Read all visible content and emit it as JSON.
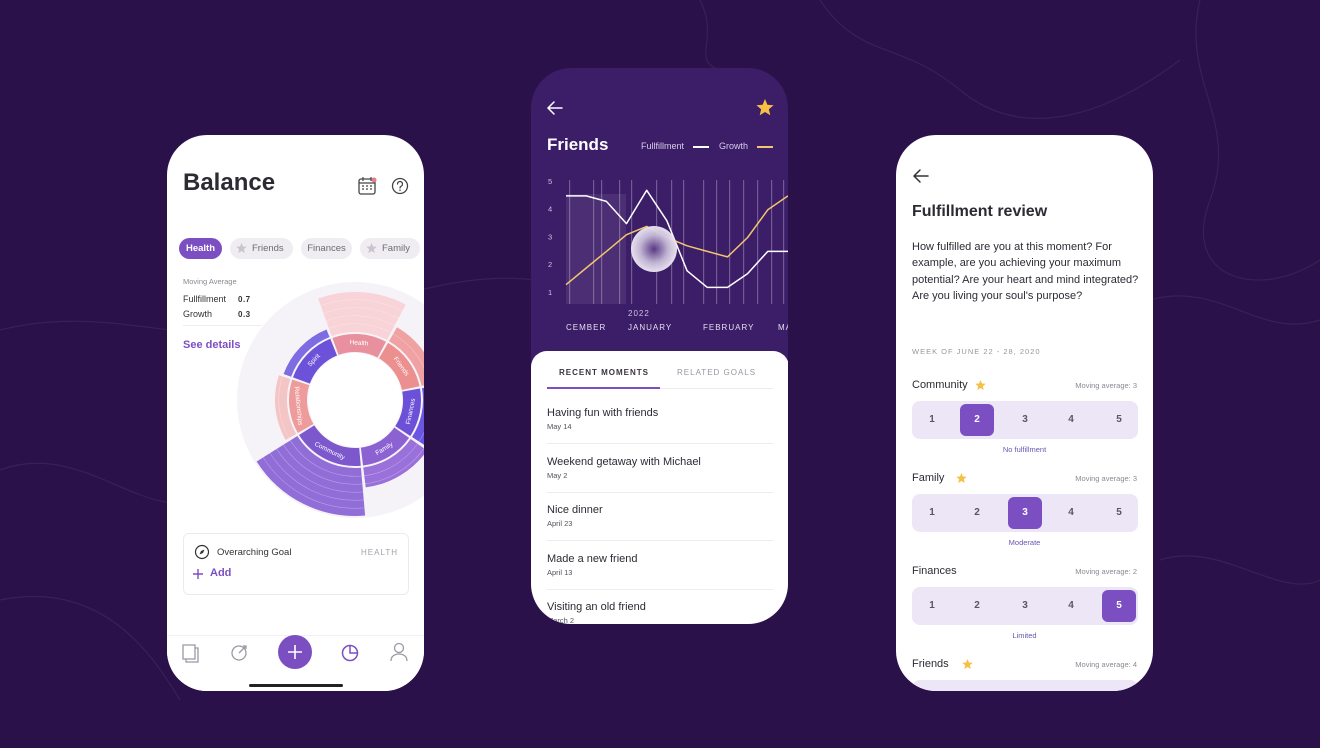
{
  "balance": {
    "title": "Balance",
    "tabs": [
      {
        "label": "Health",
        "active": true,
        "star": false
      },
      {
        "label": "Friends",
        "active": false,
        "star": true
      },
      {
        "label": "Finances",
        "active": false,
        "star": false
      },
      {
        "label": "Family",
        "active": false,
        "star": true
      }
    ],
    "moving_average_label": "Moving Average",
    "metrics": [
      {
        "label": "Fullfillment",
        "value": 0.7
      },
      {
        "label": "Growth",
        "value": 0.3
      }
    ],
    "see_details": "See details",
    "wheel_labels": [
      "Health",
      "Friends",
      "Finances",
      "Family",
      "Community",
      "Relationships",
      "Spirit"
    ],
    "goal": {
      "title": "Overarching Goal",
      "tag": "HEALTH",
      "add": "Add"
    }
  },
  "friends": {
    "title": "Friends",
    "chart": {
      "type": "line",
      "ylim": [
        1,
        5
      ],
      "yticks": [
        1,
        2,
        3,
        4,
        5
      ],
      "series": [
        {
          "name": "Fullfillment",
          "color": "#ffffff",
          "values": [
            4.5,
            4.5,
            4.3,
            3.5,
            4.7,
            3.6,
            1.8,
            1.2,
            1.2,
            1.7,
            2.5,
            2.5
          ]
        },
        {
          "name": "Growth",
          "color": "#f2c66d",
          "values": [
            1.3,
            1.9,
            2.5,
            3.1,
            3.4,
            3.0,
            2.7,
            2.5,
            2.3,
            3.0,
            4.0,
            4.5
          ]
        }
      ],
      "year": "2022",
      "x_labels": [
        "CEMBER",
        "JANUARY",
        "FEBRUARY",
        "MA"
      ]
    },
    "tabs": [
      "RECENT MOMENTS",
      "RELATED GOALS"
    ],
    "moments": [
      {
        "title": "Having fun with friends",
        "date": "May 14"
      },
      {
        "title": "Weekend getaway with Michael",
        "date": "May 2"
      },
      {
        "title": "Nice dinner",
        "date": "April 23"
      },
      {
        "title": "Made a new friend",
        "date": "April 13"
      },
      {
        "title": "Visiting an old friend",
        "date": "March 2"
      }
    ]
  },
  "review": {
    "title": "Fulfillment review",
    "question": "How fulfilled are you at this moment? For example, are you achieving your maximum potential? Are your heart and mind integrated? Are you living your soul's purpose?",
    "week": "WEEK OF JUNE 22 - 28, 2020",
    "scale": [
      1,
      2,
      3,
      4,
      5
    ],
    "rows": [
      {
        "name": "Community",
        "star": true,
        "average": "Moving average: 3",
        "selected": 2,
        "status": "No fulfillment"
      },
      {
        "name": "Family",
        "star": true,
        "average": "Moving average: 3",
        "selected": 3,
        "status": "Moderate"
      },
      {
        "name": "Finances",
        "star": false,
        "average": "Moving average: 2",
        "selected": 5,
        "status": "Limited"
      },
      {
        "name": "Friends",
        "star": true,
        "average": "Moving average: 4"
      }
    ]
  }
}
